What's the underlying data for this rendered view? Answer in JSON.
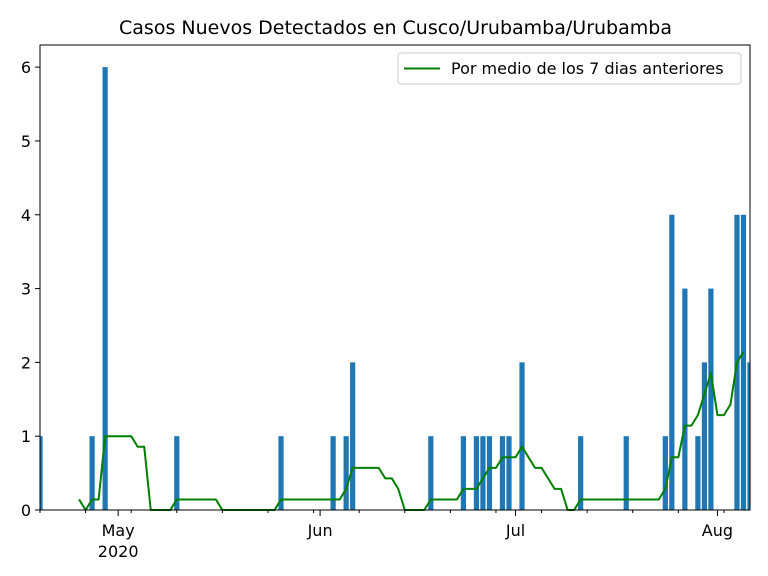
{
  "chart_data": {
    "type": "bar",
    "title": "Casos Nuevos Detectados en Cusco/Urubamba/Urubamba",
    "xlabel": "",
    "ylabel": "",
    "date_start": "2020-04-19",
    "date_end": "2020-08-06",
    "ylim": [
      0,
      6.3
    ],
    "yticks": [
      0,
      1,
      2,
      3,
      4,
      5,
      6
    ],
    "xticks": [
      {
        "date": "2020-05-01",
        "label": "May",
        "sublabel": "2020"
      },
      {
        "date": "2020-06-01",
        "label": "Jun",
        "sublabel": ""
      },
      {
        "date": "2020-07-01",
        "label": "Jul",
        "sublabel": ""
      },
      {
        "date": "2020-08-01",
        "label": "Aug",
        "sublabel": ""
      }
    ],
    "bar_series": {
      "color": "#1f77b4",
      "points": [
        {
          "date": "2020-04-19",
          "value": 1
        },
        {
          "date": "2020-04-27",
          "value": 1
        },
        {
          "date": "2020-04-29",
          "value": 6
        },
        {
          "date": "2020-05-10",
          "value": 1
        },
        {
          "date": "2020-05-26",
          "value": 1
        },
        {
          "date": "2020-06-03",
          "value": 1
        },
        {
          "date": "2020-06-05",
          "value": 1
        },
        {
          "date": "2020-06-06",
          "value": 2
        },
        {
          "date": "2020-06-18",
          "value": 1
        },
        {
          "date": "2020-06-23",
          "value": 1
        },
        {
          "date": "2020-06-25",
          "value": 1
        },
        {
          "date": "2020-06-26",
          "value": 1
        },
        {
          "date": "2020-06-27",
          "value": 1
        },
        {
          "date": "2020-06-29",
          "value": 1
        },
        {
          "date": "2020-06-30",
          "value": 1
        },
        {
          "date": "2020-07-02",
          "value": 2
        },
        {
          "date": "2020-07-11",
          "value": 1
        },
        {
          "date": "2020-07-18",
          "value": 1
        },
        {
          "date": "2020-07-24",
          "value": 1
        },
        {
          "date": "2020-07-25",
          "value": 4
        },
        {
          "date": "2020-07-27",
          "value": 3
        },
        {
          "date": "2020-07-29",
          "value": 1
        },
        {
          "date": "2020-07-30",
          "value": 2
        },
        {
          "date": "2020-07-31",
          "value": 3
        },
        {
          "date": "2020-08-04",
          "value": 4
        },
        {
          "date": "2020-08-05",
          "value": 4
        },
        {
          "date": "2020-08-06",
          "value": 2
        }
      ]
    },
    "line_series": {
      "name": "Por medio de los 7 dias anteriores",
      "color": "#008000",
      "points": [
        [
          "2020-04-25",
          0.143
        ],
        [
          "2020-04-26",
          0.0
        ],
        [
          "2020-04-27",
          0.143
        ],
        [
          "2020-04-28",
          0.143
        ],
        [
          "2020-04-29",
          1.0
        ],
        [
          "2020-04-30",
          1.0
        ],
        [
          "2020-05-01",
          1.0
        ],
        [
          "2020-05-02",
          1.0
        ],
        [
          "2020-05-03",
          1.0
        ],
        [
          "2020-05-04",
          0.857
        ],
        [
          "2020-05-05",
          0.857
        ],
        [
          "2020-05-06",
          0.0
        ],
        [
          "2020-05-07",
          0.0
        ],
        [
          "2020-05-08",
          0.0
        ],
        [
          "2020-05-09",
          0.0
        ],
        [
          "2020-05-10",
          0.143
        ],
        [
          "2020-05-11",
          0.143
        ],
        [
          "2020-05-12",
          0.143
        ],
        [
          "2020-05-13",
          0.143
        ],
        [
          "2020-05-14",
          0.143
        ],
        [
          "2020-05-15",
          0.143
        ],
        [
          "2020-05-16",
          0.143
        ],
        [
          "2020-05-17",
          0.0
        ],
        [
          "2020-05-18",
          0.0
        ],
        [
          "2020-05-19",
          0.0
        ],
        [
          "2020-05-20",
          0.0
        ],
        [
          "2020-05-21",
          0.0
        ],
        [
          "2020-05-22",
          0.0
        ],
        [
          "2020-05-23",
          0.0
        ],
        [
          "2020-05-24",
          0.0
        ],
        [
          "2020-05-25",
          0.0
        ],
        [
          "2020-05-26",
          0.143
        ],
        [
          "2020-05-27",
          0.143
        ],
        [
          "2020-05-28",
          0.143
        ],
        [
          "2020-05-29",
          0.143
        ],
        [
          "2020-05-30",
          0.143
        ],
        [
          "2020-05-31",
          0.143
        ],
        [
          "2020-06-01",
          0.143
        ],
        [
          "2020-06-02",
          0.143
        ],
        [
          "2020-06-03",
          0.143
        ],
        [
          "2020-06-04",
          0.143
        ],
        [
          "2020-06-05",
          0.286
        ],
        [
          "2020-06-06",
          0.571
        ],
        [
          "2020-06-07",
          0.571
        ],
        [
          "2020-06-08",
          0.571
        ],
        [
          "2020-06-09",
          0.571
        ],
        [
          "2020-06-10",
          0.571
        ],
        [
          "2020-06-11",
          0.429
        ],
        [
          "2020-06-12",
          0.429
        ],
        [
          "2020-06-13",
          0.286
        ],
        [
          "2020-06-14",
          0.0
        ],
        [
          "2020-06-15",
          0.0
        ],
        [
          "2020-06-16",
          0.0
        ],
        [
          "2020-06-17",
          0.0
        ],
        [
          "2020-06-18",
          0.143
        ],
        [
          "2020-06-19",
          0.143
        ],
        [
          "2020-06-20",
          0.143
        ],
        [
          "2020-06-21",
          0.143
        ],
        [
          "2020-06-22",
          0.143
        ],
        [
          "2020-06-23",
          0.286
        ],
        [
          "2020-06-24",
          0.286
        ],
        [
          "2020-06-25",
          0.286
        ],
        [
          "2020-06-26",
          0.429
        ],
        [
          "2020-06-27",
          0.571
        ],
        [
          "2020-06-28",
          0.571
        ],
        [
          "2020-06-29",
          0.714
        ],
        [
          "2020-06-30",
          0.714
        ],
        [
          "2020-07-01",
          0.714
        ],
        [
          "2020-07-02",
          0.857
        ],
        [
          "2020-07-03",
          0.714
        ],
        [
          "2020-07-04",
          0.571
        ],
        [
          "2020-07-05",
          0.571
        ],
        [
          "2020-07-06",
          0.429
        ],
        [
          "2020-07-07",
          0.286
        ],
        [
          "2020-07-08",
          0.286
        ],
        [
          "2020-07-09",
          0.0
        ],
        [
          "2020-07-10",
          0.0
        ],
        [
          "2020-07-11",
          0.143
        ],
        [
          "2020-07-12",
          0.143
        ],
        [
          "2020-07-13",
          0.143
        ],
        [
          "2020-07-14",
          0.143
        ],
        [
          "2020-07-15",
          0.143
        ],
        [
          "2020-07-16",
          0.143
        ],
        [
          "2020-07-17",
          0.143
        ],
        [
          "2020-07-18",
          0.143
        ],
        [
          "2020-07-19",
          0.143
        ],
        [
          "2020-07-20",
          0.143
        ],
        [
          "2020-07-21",
          0.143
        ],
        [
          "2020-07-22",
          0.143
        ],
        [
          "2020-07-23",
          0.143
        ],
        [
          "2020-07-24",
          0.286
        ],
        [
          "2020-07-25",
          0.714
        ],
        [
          "2020-07-26",
          0.714
        ],
        [
          "2020-07-27",
          1.143
        ],
        [
          "2020-07-28",
          1.143
        ],
        [
          "2020-07-29",
          1.286
        ],
        [
          "2020-07-30",
          1.571
        ],
        [
          "2020-07-31",
          1.857
        ],
        [
          "2020-08-01",
          1.286
        ],
        [
          "2020-08-02",
          1.286
        ],
        [
          "2020-08-03",
          1.429
        ],
        [
          "2020-08-04",
          2.0
        ],
        [
          "2020-08-05",
          2.143
        ]
      ]
    },
    "legend": {
      "position": "top-right",
      "entries": [
        "Por medio de los 7 dias anteriores"
      ]
    },
    "grid": false
  }
}
